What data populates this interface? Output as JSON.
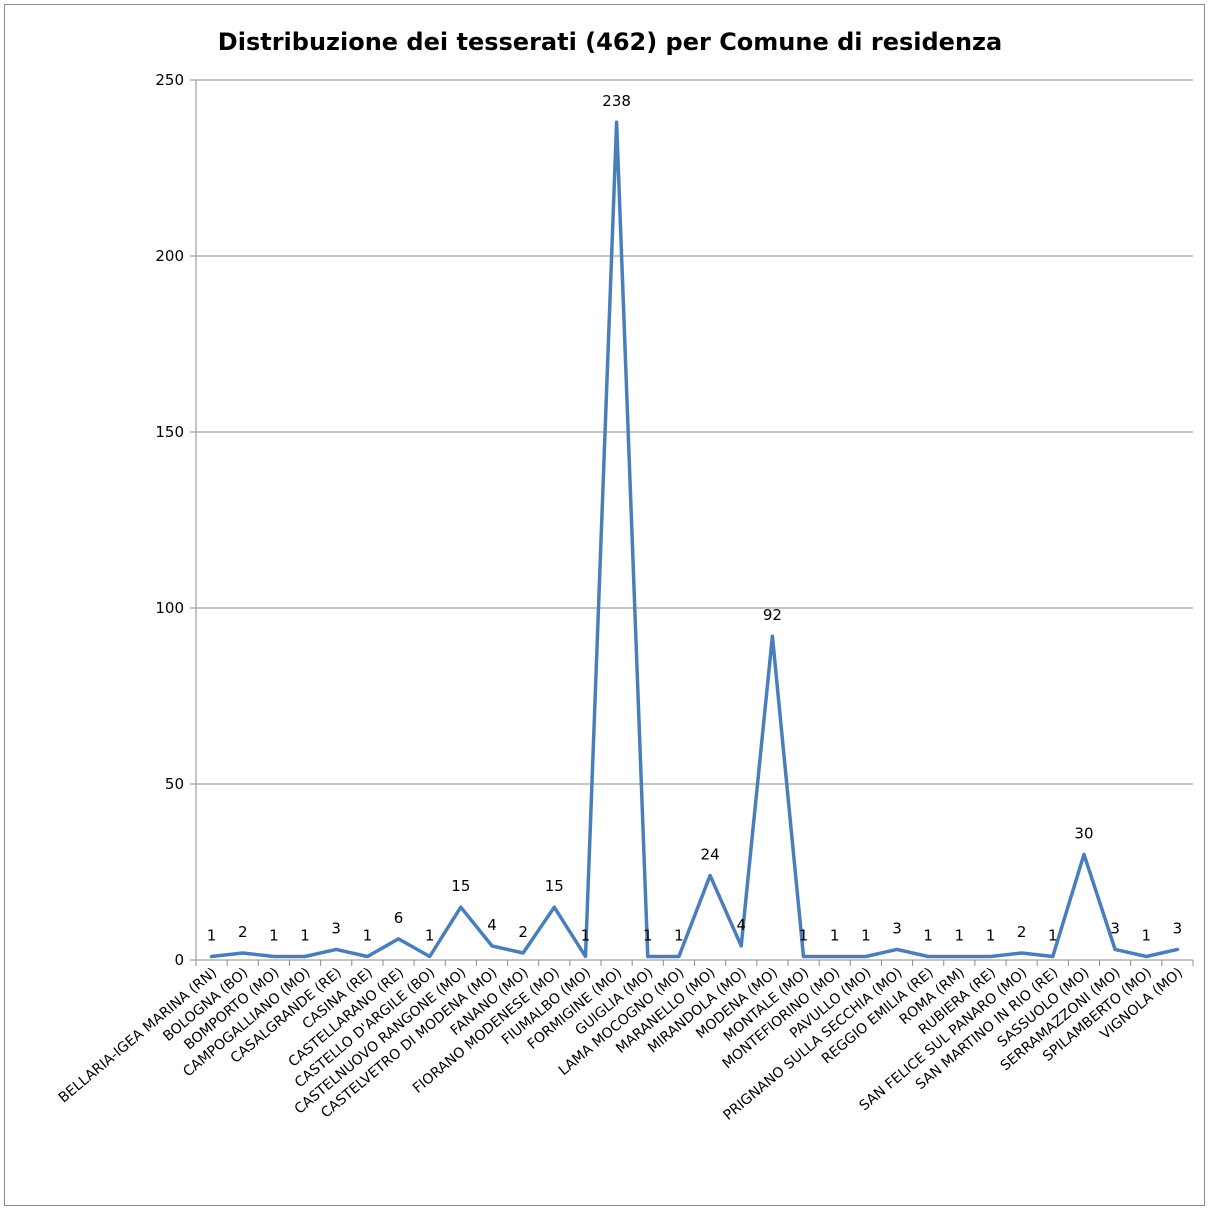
{
  "chart_data": {
    "type": "line",
    "title": "Distribuzione dei tesserati (462) per Comune di residenza",
    "xlabel": "",
    "ylabel": "",
    "ylim": [
      0,
      250
    ],
    "yticks": [
      0,
      50,
      100,
      150,
      200,
      250
    ],
    "grid": true,
    "legend": "none",
    "line_color": "#4a7ebb",
    "grid_color": "#8c8c8c",
    "categories": [
      "BELLARIA-IGEA MARINA (RN)",
      "BOLOGNA (BO)",
      "BOMPORTO (MO)",
      "CAMPOGALLIANO (MO)",
      "CASALGRANDE (RE)",
      "CASINA (RE)",
      "CASTELLARANO (RE)",
      "CASTELLO D'ARGILE (BO)",
      "CASTELNUOVO RANGONE (MO)",
      "CASTELVETRO DI MODENA (MO)",
      "FANANO (MO)",
      "FIORANO MODENESE (MO)",
      "FIUMALBO (MO)",
      "FORMIGINE (MO)",
      "GUIGLIA (MO)",
      "LAMA MOCOGNO (MO)",
      "MARANELLO (MO)",
      "MIRANDOLA (MO)",
      "MODENA (MO)",
      "MONTALE (MO)",
      "MONTEFIORINO (MO)",
      "PAVULLO (MO)",
      "PRIGNANO SULLA SECCHIA (MO)",
      "REGGIO EMILIA (RE)",
      "ROMA (RM)",
      "RUBIERA (RE)",
      "SAN FELICE SUL PANARO (MO)",
      "SAN MARTINO IN RIO (RE)",
      "SASSUOLO (MO)",
      "SERRAMAZZONI (MO)",
      "SPILAMBERTO (MO)",
      "VIGNOLA (MO)"
    ],
    "series": [
      {
        "values": [
          1,
          2,
          1,
          1,
          3,
          1,
          6,
          1,
          15,
          4,
          2,
          15,
          1,
          238,
          1,
          1,
          24,
          4,
          92,
          1,
          1,
          1,
          3,
          1,
          1,
          1,
          2,
          1,
          30,
          3,
          1,
          3
        ]
      }
    ]
  }
}
